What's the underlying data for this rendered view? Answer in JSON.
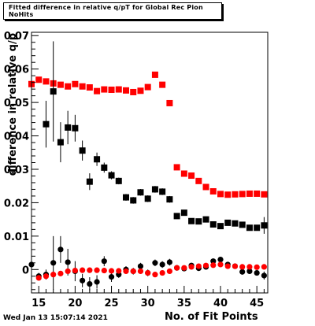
{
  "header": {
    "title": "Fitted difference in relative q/pT for Global Rec Pion NoHits"
  },
  "footer": {
    "timestamp": "Wed Jan 13 15:07:14 2021"
  },
  "colors": {
    "series_red": "#ff0000",
    "series_black": "#000000",
    "frame": "#000000"
  },
  "chart_data": {
    "type": "scatter",
    "title": "Fitted difference in relative q/pT for Global Rec Pion NoHits",
    "xlabel": "No. of Fit Points",
    "ylabel": "difference in relative q/p",
    "xlim": [
      14,
      46.5
    ],
    "ylim": [
      -0.007,
      0.071
    ],
    "grid": false,
    "legend": "none",
    "x_ticks": [
      "15",
      "20",
      "25",
      "30",
      "35",
      "40",
      "45"
    ],
    "y_ticks": [
      "0",
      "0.01",
      "0.02",
      "0.03",
      "0.04",
      "0.05",
      "0.06",
      "0.07"
    ],
    "series": [
      {
        "marker": "square",
        "color": "#ff0000",
        "points": [
          {
            "x": 14,
            "y": 0.0555
          },
          {
            "x": 15,
            "y": 0.0568
          },
          {
            "x": 16,
            "y": 0.0563
          },
          {
            "x": 17,
            "y": 0.0557
          },
          {
            "x": 18,
            "y": 0.0553
          },
          {
            "x": 19,
            "y": 0.0548
          },
          {
            "x": 20,
            "y": 0.0555
          },
          {
            "x": 21,
            "y": 0.0548
          },
          {
            "x": 22,
            "y": 0.0545
          },
          {
            "x": 23,
            "y": 0.0534
          },
          {
            "x": 24,
            "y": 0.0539
          },
          {
            "x": 25,
            "y": 0.0538
          },
          {
            "x": 26,
            "y": 0.0539
          },
          {
            "x": 27,
            "y": 0.0536
          },
          {
            "x": 28,
            "y": 0.0531
          },
          {
            "x": 29,
            "y": 0.0535
          },
          {
            "x": 30,
            "y": 0.0546
          },
          {
            "x": 31,
            "y": 0.0583
          },
          {
            "x": 32,
            "y": 0.0553
          },
          {
            "x": 33,
            "y": 0.0498
          },
          {
            "x": 34,
            "y": 0.0306
          },
          {
            "x": 35,
            "y": 0.0287
          },
          {
            "x": 36,
            "y": 0.0281
          },
          {
            "x": 37,
            "y": 0.0265
          },
          {
            "x": 38,
            "y": 0.0247
          },
          {
            "x": 39,
            "y": 0.0234
          },
          {
            "x": 40,
            "y": 0.0226
          },
          {
            "x": 41,
            "y": 0.0224
          },
          {
            "x": 42,
            "y": 0.0225
          },
          {
            "x": 43,
            "y": 0.0226
          },
          {
            "x": 44,
            "y": 0.0227
          },
          {
            "x": 45,
            "y": 0.0227
          },
          {
            "x": 46,
            "y": 0.0225
          }
        ]
      },
      {
        "marker": "square",
        "color": "#000000",
        "points": [
          {
            "x": 16,
            "y": 0.0435,
            "err": 0.007
          },
          {
            "x": 17,
            "y": 0.0533,
            "err": 0.015
          },
          {
            "x": 18,
            "y": 0.0381,
            "err": 0.006
          },
          {
            "x": 19,
            "y": 0.0425,
            "err": 0.005
          },
          {
            "x": 20,
            "y": 0.0423,
            "err": 0.004
          },
          {
            "x": 21,
            "y": 0.0356,
            "err": 0.003
          },
          {
            "x": 22,
            "y": 0.0263,
            "err": 0.0025
          },
          {
            "x": 23,
            "y": 0.033,
            "err": 0.002
          },
          {
            "x": 24,
            "y": 0.0305,
            "err": 0.0015
          },
          {
            "x": 25,
            "y": 0.0282,
            "err": 0.0012
          },
          {
            "x": 26,
            "y": 0.0265,
            "err": 0.001
          },
          {
            "x": 27,
            "y": 0.0216,
            "err": 0.001
          },
          {
            "x": 28,
            "y": 0.0207,
            "err": 0.001
          },
          {
            "x": 29,
            "y": 0.0231,
            "err": 0.001
          },
          {
            "x": 30,
            "y": 0.0212,
            "err": 0.001
          },
          {
            "x": 31,
            "y": 0.024,
            "err": 0.001
          },
          {
            "x": 32,
            "y": 0.0233,
            "err": 0.001
          },
          {
            "x": 33,
            "y": 0.021,
            "err": 0.001
          },
          {
            "x": 34,
            "y": 0.016,
            "err": 0.0008
          },
          {
            "x": 35,
            "y": 0.017,
            "err": 0.0008
          },
          {
            "x": 36,
            "y": 0.0145,
            "err": 0.0008
          },
          {
            "x": 37,
            "y": 0.0144,
            "err": 0.0008
          },
          {
            "x": 38,
            "y": 0.015,
            "err": 0.0008
          },
          {
            "x": 39,
            "y": 0.0135,
            "err": 0.0008
          },
          {
            "x": 40,
            "y": 0.013,
            "err": 0.0008
          },
          {
            "x": 41,
            "y": 0.014,
            "err": 0.0008
          },
          {
            "x": 42,
            "y": 0.0138,
            "err": 0.0008
          },
          {
            "x": 43,
            "y": 0.0134,
            "err": 0.0008
          },
          {
            "x": 44,
            "y": 0.0125,
            "err": 0.0008
          },
          {
            "x": 45,
            "y": 0.0125,
            "err": 0.0008
          },
          {
            "x": 46,
            "y": 0.0132,
            "err": 0.0025
          }
        ]
      },
      {
        "marker": "circle",
        "color": "#000000",
        "points": [
          {
            "x": 14,
            "y": 0.0015,
            "err": 0.001
          },
          {
            "x": 15,
            "y": -0.002,
            "err": 0.001
          },
          {
            "x": 16,
            "y": -0.0015,
            "err": 0.0015
          },
          {
            "x": 17,
            "y": 0.002,
            "err": 0.008
          },
          {
            "x": 18,
            "y": 0.006,
            "err": 0.004
          },
          {
            "x": 19,
            "y": 0.0022,
            "err": 0.004
          },
          {
            "x": 20,
            "y": -0.0005,
            "err": 0.003
          },
          {
            "x": 21,
            "y": -0.0033,
            "err": 0.002
          },
          {
            "x": 22,
            "y": -0.0043,
            "err": 0.002
          },
          {
            "x": 23,
            "y": -0.0037,
            "err": 0.002
          },
          {
            "x": 24,
            "y": 0.0025,
            "err": 0.0015
          },
          {
            "x": 25,
            "y": -0.0022,
            "err": 0.0015
          },
          {
            "x": 26,
            "y": -0.0015,
            "err": 0.001
          },
          {
            "x": 27,
            "y": 0.0,
            "err": 0.001
          },
          {
            "x": 28,
            "y": -0.0005,
            "err": 0.001
          },
          {
            "x": 29,
            "y": 0.001,
            "err": 0.001
          },
          {
            "x": 30,
            "y": -0.001,
            "err": 0.001
          },
          {
            "x": 31,
            "y": 0.002,
            "err": 0.001
          },
          {
            "x": 32,
            "y": 0.0015,
            "err": 0.001
          },
          {
            "x": 33,
            "y": 0.0022,
            "err": 0.001
          },
          {
            "x": 34,
            "y": 0.0005,
            "err": 0.0008
          },
          {
            "x": 35,
            "y": 0.0003,
            "err": 0.0008
          },
          {
            "x": 36,
            "y": 0.0012,
            "err": 0.0008
          },
          {
            "x": 37,
            "y": 0.0004,
            "err": 0.0008
          },
          {
            "x": 38,
            "y": 0.0008,
            "err": 0.0008
          },
          {
            "x": 39,
            "y": 0.0025,
            "err": 0.0008
          },
          {
            "x": 40,
            "y": 0.003,
            "err": 0.0008
          },
          {
            "x": 41,
            "y": 0.0015,
            "err": 0.0008
          },
          {
            "x": 42,
            "y": 0.001,
            "err": 0.0008
          },
          {
            "x": 43,
            "y": -0.0007,
            "err": 0.0008
          },
          {
            "x": 44,
            "y": -0.0005,
            "err": 0.0008
          },
          {
            "x": 45,
            "y": -0.001,
            "err": 0.0008
          },
          {
            "x": 46,
            "y": -0.0018,
            "err": 0.0012
          }
        ]
      },
      {
        "marker": "circle",
        "color": "#ff0000",
        "points": [
          {
            "x": 15,
            "y": -0.0025
          },
          {
            "x": 16,
            "y": -0.002
          },
          {
            "x": 17,
            "y": -0.0015
          },
          {
            "x": 18,
            "y": -0.0012
          },
          {
            "x": 19,
            "y": -0.0005
          },
          {
            "x": 20,
            "y": -0.0003
          },
          {
            "x": 21,
            "y": -0.0002
          },
          {
            "x": 22,
            "y": -0.0002
          },
          {
            "x": 23,
            "y": -0.0002
          },
          {
            "x": 24,
            "y": -0.0003
          },
          {
            "x": 25,
            "y": -0.0004
          },
          {
            "x": 26,
            "y": -0.0004
          },
          {
            "x": 27,
            "y": -0.0005
          },
          {
            "x": 28,
            "y": -0.0005
          },
          {
            "x": 29,
            "y": -0.0005
          },
          {
            "x": 30,
            "y": -0.001
          },
          {
            "x": 31,
            "y": -0.0015
          },
          {
            "x": 32,
            "y": -0.001
          },
          {
            "x": 33,
            "y": -0.0005
          },
          {
            "x": 34,
            "y": 0.0005
          },
          {
            "x": 35,
            "y": 0.0005
          },
          {
            "x": 36,
            "y": 0.0008
          },
          {
            "x": 37,
            "y": 0.001
          },
          {
            "x": 38,
            "y": 0.0012
          },
          {
            "x": 39,
            "y": 0.0013
          },
          {
            "x": 40,
            "y": 0.0015
          },
          {
            "x": 41,
            "y": 0.001
          },
          {
            "x": 42,
            "y": 0.001
          },
          {
            "x": 43,
            "y": 0.0008
          },
          {
            "x": 44,
            "y": 0.0008
          },
          {
            "x": 45,
            "y": 0.0007
          },
          {
            "x": 46,
            "y": 0.0008
          }
        ]
      }
    ]
  }
}
